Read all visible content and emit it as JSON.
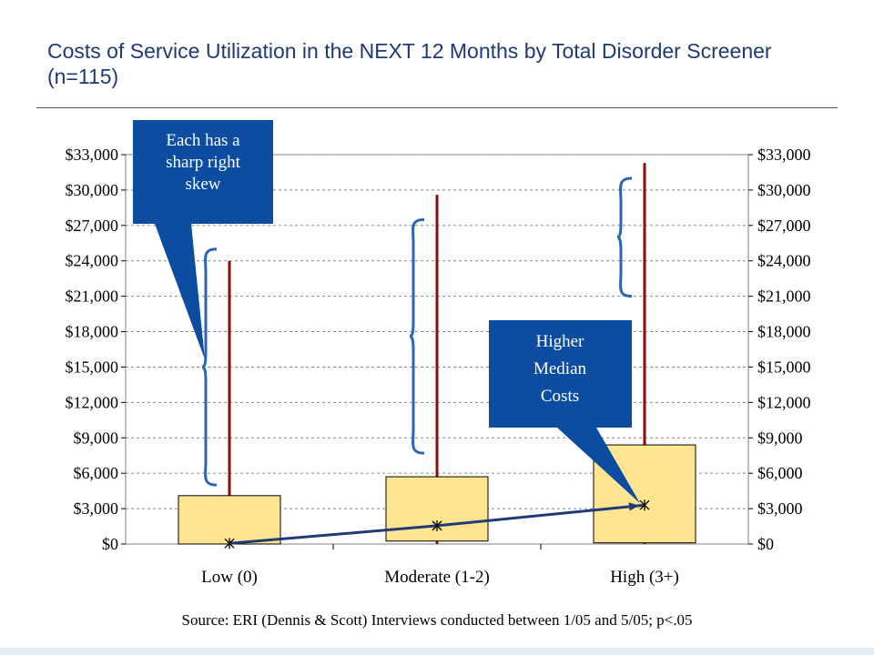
{
  "title": "Costs of Service Utilization in the NEXT 12 Months by Total Disorder Screener (n=115)",
  "source": "Source:  ERI (Dennis & Scott) Interviews conducted between 1/05 and 5/05; p<.05",
  "colors": {
    "title": "#1f3a74",
    "box_fill": "#ffe58f",
    "whisker": "#8b0e0e",
    "trend": "#1f3a74",
    "brace": "#2e64b4",
    "callout": "#0c4da2"
  },
  "callouts": [
    {
      "id": "skew",
      "text": "Each has  a sharp right skew"
    },
    {
      "id": "median",
      "text": "Higher Median Costs"
    }
  ],
  "chart_data": {
    "type": "box",
    "categories": [
      "Low (0)",
      "Moderate (1-2)",
      "High (3+)"
    ],
    "ylim": [
      0,
      33000
    ],
    "yticks": [
      "$0",
      "$3,000",
      "$6,000",
      "$9,000",
      "$12,000",
      "$15,000",
      "$18,000",
      "$21,000",
      "$24,000",
      "$27,000",
      "$30,000",
      "$33,000"
    ],
    "ytick_values": [
      0,
      3000,
      6000,
      9000,
      12000,
      15000,
      18000,
      21000,
      24000,
      27000,
      30000,
      33000
    ],
    "secondary_y_axis": true,
    "grid": true,
    "series": [
      {
        "q1": 0,
        "q3": 4100,
        "median": 50,
        "max": 24000
      },
      {
        "q1": 250,
        "q3": 5700,
        "median": 1550,
        "max": 29600
      },
      {
        "q1": 100,
        "q3": 8400,
        "median": 3300,
        "max": 32300
      }
    ],
    "median_trend": true,
    "braces": [
      {
        "from": 5000,
        "to": 25000
      },
      {
        "from": 7700,
        "to": 27500
      },
      {
        "from": 21000,
        "to": 31000
      }
    ]
  }
}
